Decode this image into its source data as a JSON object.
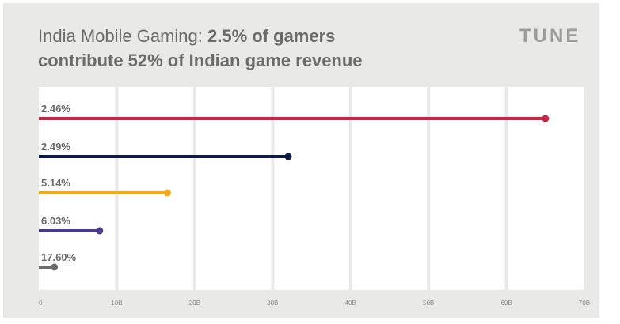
{
  "title_light": "India Mobile Gaming: ",
  "title_bold_1": "2.5% of gamers",
  "title_bold_2": "contribute 52% of Indian game revenue",
  "logo": "TUNE",
  "chart_data": {
    "type": "bar",
    "orientation": "horizontal",
    "style": "lollipop",
    "categories": [
      "2.46%",
      "2.49%",
      "5.14%",
      "6.03%",
      "17.60%"
    ],
    "values": [
      65,
      32,
      16.5,
      7.8,
      2
    ],
    "colors": [
      "#d0234a",
      "#101a48",
      "#f4a91d",
      "#4b3b86",
      "#6d6d6d"
    ],
    "xlim": [
      0,
      70
    ],
    "xticks": [
      "0",
      "10B",
      "20B",
      "30B",
      "40B",
      "50B",
      "60B",
      "70B"
    ],
    "xlabel": "",
    "ylabel": "",
    "grid": true
  }
}
